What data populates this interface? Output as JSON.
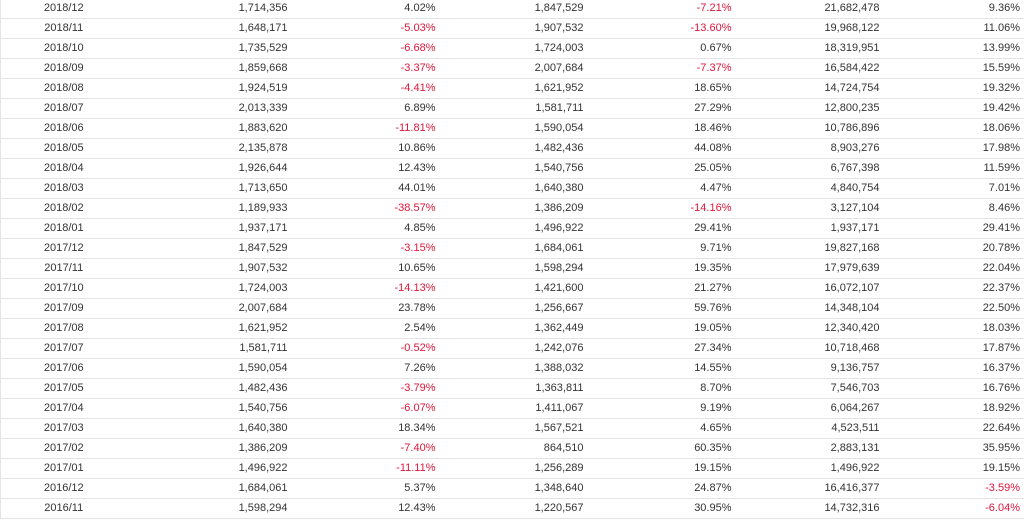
{
  "colors": {
    "negative": "#e0163b",
    "text": "#333333",
    "rowBorder": "#e4e4e4"
  },
  "rows": [
    [
      "2018/12",
      "1,714,356",
      "4.02%",
      "1,847,529",
      "-7.21%",
      "21,682,478",
      "9.36%"
    ],
    [
      "2018/11",
      "1,648,171",
      "-5.03%",
      "1,907,532",
      "-13.60%",
      "19,968,122",
      "11.06%"
    ],
    [
      "2018/10",
      "1,735,529",
      "-6.68%",
      "1,724,003",
      "0.67%",
      "18,319,951",
      "13.99%"
    ],
    [
      "2018/09",
      "1,859,668",
      "-3.37%",
      "2,007,684",
      "-7.37%",
      "16,584,422",
      "15.59%"
    ],
    [
      "2018/08",
      "1,924,519",
      "-4.41%",
      "1,621,952",
      "18.65%",
      "14,724,754",
      "19.32%"
    ],
    [
      "2018/07",
      "2,013,339",
      "6.89%",
      "1,581,711",
      "27.29%",
      "12,800,235",
      "19.42%"
    ],
    [
      "2018/06",
      "1,883,620",
      "-11.81%",
      "1,590,054",
      "18.46%",
      "10,786,896",
      "18.06%"
    ],
    [
      "2018/05",
      "2,135,878",
      "10.86%",
      "1,482,436",
      "44.08%",
      "8,903,276",
      "17.98%"
    ],
    [
      "2018/04",
      "1,926,644",
      "12.43%",
      "1,540,756",
      "25.05%",
      "6,767,398",
      "11.59%"
    ],
    [
      "2018/03",
      "1,713,650",
      "44.01%",
      "1,640,380",
      "4.47%",
      "4,840,754",
      "7.01%"
    ],
    [
      "2018/02",
      "1,189,933",
      "-38.57%",
      "1,386,209",
      "-14.16%",
      "3,127,104",
      "8.46%"
    ],
    [
      "2018/01",
      "1,937,171",
      "4.85%",
      "1,496,922",
      "29.41%",
      "1,937,171",
      "29.41%"
    ],
    [
      "2017/12",
      "1,847,529",
      "-3.15%",
      "1,684,061",
      "9.71%",
      "19,827,168",
      "20.78%"
    ],
    [
      "2017/11",
      "1,907,532",
      "10.65%",
      "1,598,294",
      "19.35%",
      "17,979,639",
      "22.04%"
    ],
    [
      "2017/10",
      "1,724,003",
      "-14.13%",
      "1,421,600",
      "21.27%",
      "16,072,107",
      "22.37%"
    ],
    [
      "2017/09",
      "2,007,684",
      "23.78%",
      "1,256,667",
      "59.76%",
      "14,348,104",
      "22.50%"
    ],
    [
      "2017/08",
      "1,621,952",
      "2.54%",
      "1,362,449",
      "19.05%",
      "12,340,420",
      "18.03%"
    ],
    [
      "2017/07",
      "1,581,711",
      "-0.52%",
      "1,242,076",
      "27.34%",
      "10,718,468",
      "17.87%"
    ],
    [
      "2017/06",
      "1,590,054",
      "7.26%",
      "1,388,032",
      "14.55%",
      "9,136,757",
      "16.37%"
    ],
    [
      "2017/05",
      "1,482,436",
      "-3.79%",
      "1,363,811",
      "8.70%",
      "7,546,703",
      "16.76%"
    ],
    [
      "2017/04",
      "1,540,756",
      "-6.07%",
      "1,411,067",
      "9.19%",
      "6,064,267",
      "18.92%"
    ],
    [
      "2017/03",
      "1,640,380",
      "18.34%",
      "1,567,521",
      "4.65%",
      "4,523,511",
      "22.64%"
    ],
    [
      "2017/02",
      "1,386,209",
      "-7.40%",
      "864,510",
      "60.35%",
      "2,883,131",
      "35.95%"
    ],
    [
      "2017/01",
      "1,496,922",
      "-11.11%",
      "1,256,289",
      "19.15%",
      "1,496,922",
      "19.15%"
    ],
    [
      "2016/12",
      "1,684,061",
      "5.37%",
      "1,348,640",
      "24.87%",
      "16,416,377",
      "-3.59%"
    ],
    [
      "2016/11",
      "1,598,294",
      "12.43%",
      "1,220,567",
      "30.95%",
      "14,732,316",
      "-6.04%"
    ]
  ]
}
